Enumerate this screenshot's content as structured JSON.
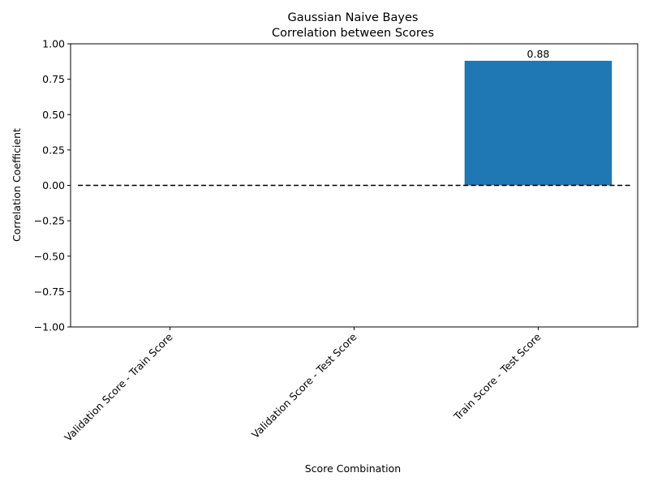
{
  "chart_data": {
    "type": "bar",
    "title_line1": "Gaussian Naive Bayes",
    "title_line2": "Correlation between Scores",
    "xlabel": "Score Combination",
    "ylabel": "Correlation Coefficient",
    "categories": [
      "Validation Score - Train Score",
      "Validation Score - Test Score",
      "Train Score - Test Score"
    ],
    "values": [
      null,
      null,
      0.88
    ],
    "data_labels": [
      "",
      "",
      "0.88"
    ],
    "ylim": [
      -1.0,
      1.0
    ],
    "yticks": [
      -1.0,
      -0.75,
      -0.5,
      -0.25,
      0.0,
      0.25,
      0.5,
      0.75,
      1.0
    ],
    "ytick_labels": [
      "−1.00",
      "−0.75",
      "−0.50",
      "−0.25",
      "0.00",
      "0.25",
      "0.50",
      "0.75",
      "1.00"
    ],
    "reference_line": {
      "y": 0.0,
      "style": "dashed",
      "color": "#000000"
    },
    "bar_color": "#1f77b4",
    "grid": false,
    "legend": "none"
  }
}
